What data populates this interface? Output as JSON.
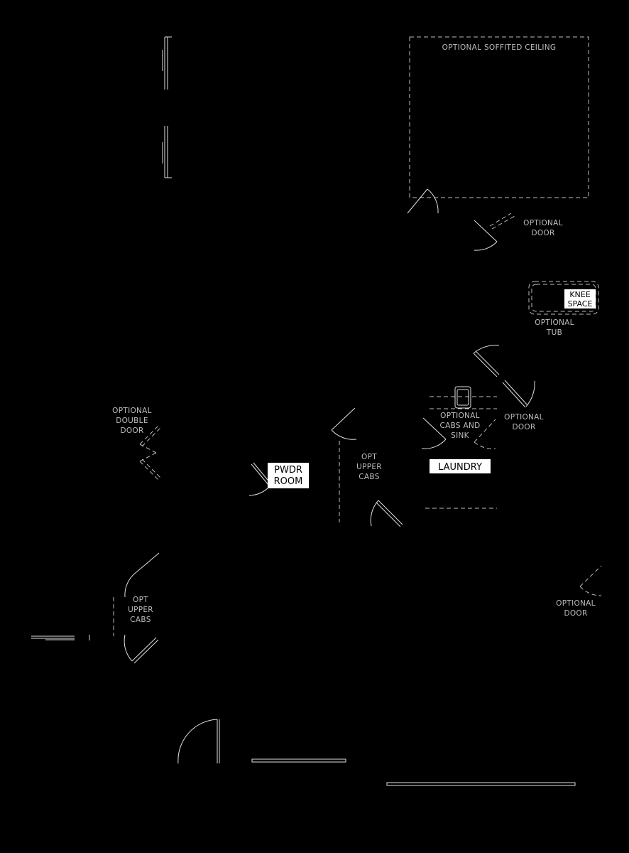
{
  "labels": {
    "soffited_ceiling": "OPTIONAL SOFFITED CEILING",
    "optional_door_top": [
      "OPTIONAL",
      "DOOR"
    ],
    "knee_space": [
      "KNEE",
      "SPACE"
    ],
    "optional_tub": [
      "OPTIONAL",
      "TUB"
    ],
    "optional_cabs_sink": [
      "OPTIONAL",
      "CABS AND",
      "SINK"
    ],
    "optional_door_laundry": [
      "OPTIONAL",
      "DOOR"
    ],
    "laundry": "LAUNDRY",
    "opt_upper_cabs_center": [
      "OPT",
      "UPPER",
      "CABS"
    ],
    "pwdr_room": [
      "PWDR",
      "ROOM"
    ],
    "optional_double_door": [
      "OPTIONAL",
      "DOUBLE",
      "DOOR"
    ],
    "opt_upper_cabs_left": [
      "OPT",
      "UPPER",
      "CABS"
    ],
    "optional_door_right": [
      "OPTIONAL",
      "DOOR"
    ]
  },
  "colors": {
    "background": "#000000",
    "linework": "#e0e0e0",
    "label_text": "#bdbdbd",
    "room_tag_bg": "#ffffff"
  }
}
